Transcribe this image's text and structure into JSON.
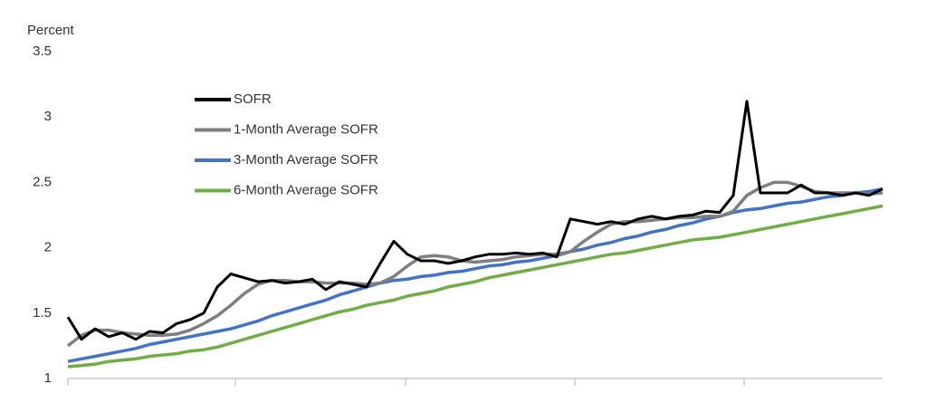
{
  "chart_data": {
    "type": "line",
    "y_label": "Percent",
    "ylim": [
      1,
      3.5
    ],
    "yticks": [
      1,
      1.5,
      2,
      2.5,
      3,
      3.5
    ],
    "series": [
      {
        "name": "SOFR",
        "color": "#000000",
        "values": [
          1.47,
          1.3,
          1.38,
          1.32,
          1.35,
          1.3,
          1.36,
          1.35,
          1.42,
          1.45,
          1.5,
          1.7,
          1.8,
          1.77,
          1.74,
          1.75,
          1.73,
          1.74,
          1.76,
          1.68,
          1.74,
          1.72,
          1.7,
          1.88,
          2.05,
          1.95,
          1.9,
          1.9,
          1.88,
          1.9,
          1.93,
          1.95,
          1.95,
          1.96,
          1.95,
          1.96,
          1.93,
          2.22,
          2.2,
          2.18,
          2.2,
          2.18,
          2.22,
          2.24,
          2.22,
          2.24,
          2.25,
          2.28,
          2.27,
          2.4,
          3.12,
          2.42,
          2.42,
          2.42,
          2.48,
          2.42,
          2.42,
          2.4,
          2.42,
          2.4,
          2.45
        ]
      },
      {
        "name": "1-Month Average SOFR",
        "color": "#7f7f7f",
        "values": [
          1.25,
          1.33,
          1.37,
          1.37,
          1.35,
          1.34,
          1.33,
          1.33,
          1.34,
          1.37,
          1.42,
          1.48,
          1.56,
          1.65,
          1.72,
          1.75,
          1.75,
          1.74,
          1.74,
          1.73,
          1.73,
          1.73,
          1.72,
          1.73,
          1.78,
          1.86,
          1.93,
          1.94,
          1.93,
          1.9,
          1.89,
          1.9,
          1.91,
          1.93,
          1.94,
          1.95,
          1.95,
          1.97,
          2.05,
          2.12,
          2.18,
          2.2,
          2.2,
          2.21,
          2.22,
          2.23,
          2.23,
          2.24,
          2.24,
          2.28,
          2.4,
          2.46,
          2.5,
          2.5,
          2.47,
          2.43,
          2.42,
          2.42,
          2.42,
          2.41,
          2.42
        ]
      },
      {
        "name": "3-Month Average SOFR",
        "color": "#4472c4",
        "values": [
          1.13,
          1.15,
          1.17,
          1.19,
          1.21,
          1.23,
          1.26,
          1.28,
          1.3,
          1.32,
          1.34,
          1.36,
          1.38,
          1.41,
          1.44,
          1.48,
          1.51,
          1.54,
          1.57,
          1.6,
          1.64,
          1.67,
          1.7,
          1.73,
          1.75,
          1.76,
          1.78,
          1.79,
          1.81,
          1.82,
          1.84,
          1.86,
          1.87,
          1.89,
          1.9,
          1.92,
          1.94,
          1.97,
          1.99,
          2.02,
          2.04,
          2.07,
          2.09,
          2.12,
          2.14,
          2.17,
          2.19,
          2.22,
          2.24,
          2.27,
          2.29,
          2.3,
          2.32,
          2.34,
          2.35,
          2.37,
          2.39,
          2.4,
          2.42,
          2.43,
          2.45
        ]
      },
      {
        "name": "6-Month Average SOFR",
        "color": "#70ad47",
        "values": [
          1.09,
          1.1,
          1.11,
          1.13,
          1.14,
          1.15,
          1.17,
          1.18,
          1.19,
          1.21,
          1.22,
          1.24,
          1.27,
          1.3,
          1.33,
          1.36,
          1.39,
          1.42,
          1.45,
          1.48,
          1.51,
          1.53,
          1.56,
          1.58,
          1.6,
          1.63,
          1.65,
          1.67,
          1.7,
          1.72,
          1.74,
          1.77,
          1.79,
          1.81,
          1.83,
          1.85,
          1.87,
          1.89,
          1.91,
          1.93,
          1.95,
          1.96,
          1.98,
          2.0,
          2.02,
          2.04,
          2.06,
          2.07,
          2.08,
          2.1,
          2.12,
          2.14,
          2.16,
          2.18,
          2.2,
          2.22,
          2.24,
          2.26,
          2.28,
          2.3,
          2.32
        ]
      }
    ]
  }
}
